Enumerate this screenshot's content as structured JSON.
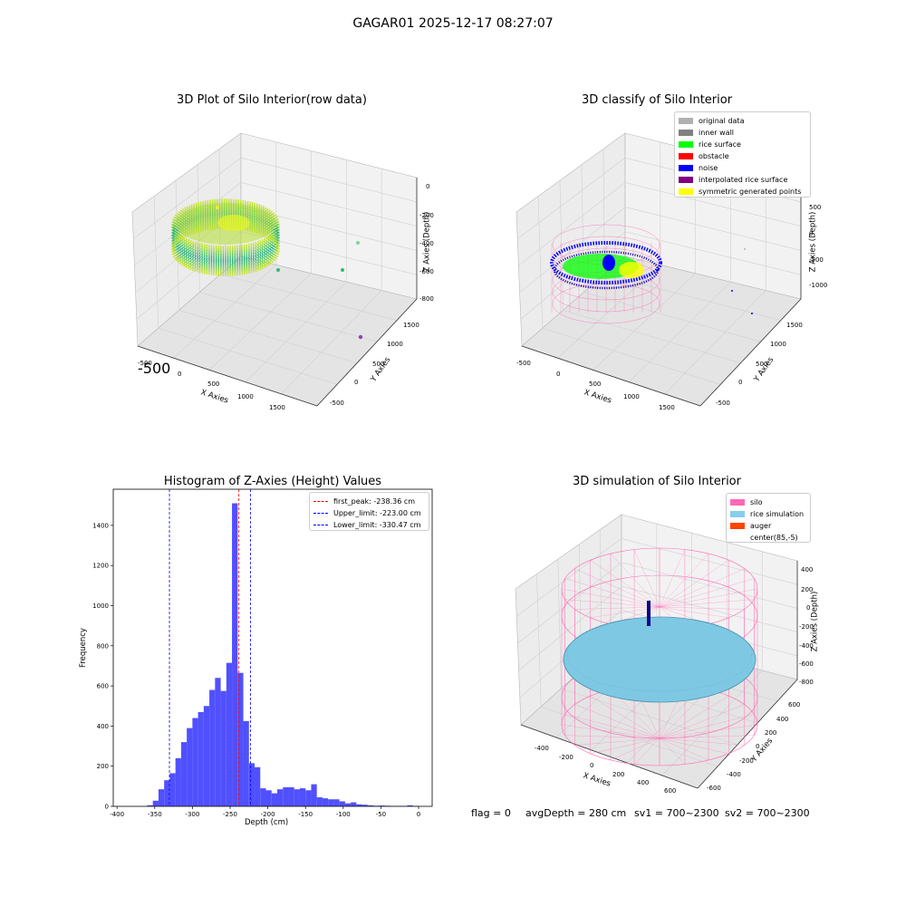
{
  "suptitle": "GAGAR01 2025-12-17 08:27:07",
  "colors": {
    "hist_bar": "#5050ff",
    "peak_line": "#ff0000",
    "limit_line": "#0000ff",
    "silo_wire": "#ff69b4",
    "rice_sim": "#7ec8e3",
    "noise": "#0000ff",
    "rice_surface": "#00ff00"
  },
  "chart_data": [
    {
      "id": "raw3d",
      "type": "scatter",
      "title": "3D Plot of Silo Interior(row data)",
      "xlabel": "X Axies",
      "ylabel": "Y Axies",
      "zlabel": "Z Axies (Depth)",
      "x_ticks": [
        "-500",
        "0",
        "500",
        "1000",
        "1500"
      ],
      "y_ticks": [
        "-500",
        "0",
        "500",
        "1000",
        "1500"
      ],
      "z_ticks": [
        "0",
        "-200",
        "-400",
        "-600",
        "-800"
      ]
    },
    {
      "id": "classify3d",
      "type": "scatter",
      "title": "3D classify of Silo Interior",
      "xlabel": "X Axies",
      "ylabel": "Y Axies",
      "zlabel": "Z Axies (Depth)",
      "x_ticks": [
        "-500",
        "0",
        "500",
        "1000",
        "1500"
      ],
      "y_ticks": [
        "-500",
        "0",
        "500",
        "1000",
        "1500"
      ],
      "z_ticks": [
        "500",
        "0",
        "-500",
        "-1000"
      ],
      "legend": [
        {
          "label": "original data",
          "color": "#b0b0b0"
        },
        {
          "label": "inner wall",
          "color": "#808080"
        },
        {
          "label": "rice surface",
          "color": "#00ff00"
        },
        {
          "label": "obstacle",
          "color": "#ff0000"
        },
        {
          "label": "noise",
          "color": "#0000ff"
        },
        {
          "label": "interpolated rice surface",
          "color": "#800080"
        },
        {
          "label": "symmetric generated points",
          "color": "#ffff00"
        }
      ]
    },
    {
      "id": "histogram",
      "type": "bar",
      "title": "Histogram of Z-Axies (Height) Values",
      "xlabel": "Depth (cm)",
      "ylabel": "Frequency",
      "xlim": [
        -405,
        18
      ],
      "ylim": [
        0,
        1580
      ],
      "x_ticks": [
        -400,
        -350,
        -300,
        -250,
        -200,
        -150,
        -100,
        -50,
        0
      ],
      "y_ticks": [
        0,
        200,
        400,
        600,
        800,
        1000,
        1200,
        1400
      ],
      "bin_start": -360,
      "bin_width": 7.5,
      "values": [
        5,
        28,
        85,
        130,
        165,
        240,
        320,
        390,
        440,
        470,
        500,
        580,
        640,
        575,
        715,
        1510,
        665,
        425,
        215,
        195,
        90,
        80,
        65,
        85,
        95,
        95,
        85,
        90,
        80,
        110,
        45,
        40,
        35,
        35,
        25,
        15,
        20,
        10,
        8,
        5,
        3,
        4,
        3,
        2,
        2,
        2,
        5,
        2
      ],
      "vlines": [
        {
          "label": "first_peak: -238.36 cm",
          "x": -238.36,
          "color": "#ff0000"
        },
        {
          "label": "Upper_limit: -223.00 cm",
          "x": -223.0,
          "color": "#0000ff"
        },
        {
          "label": "Lower_limit: -330.47 cm",
          "x": -330.47,
          "color": "#0000ff"
        }
      ]
    },
    {
      "id": "simulation3d",
      "type": "area",
      "title": "3D simulation of Silo Interior",
      "xlabel": "X Axies",
      "ylabel": "Y Axies",
      "zlabel": "Z Axies (Depth)",
      "x_ticks": [
        "-400",
        "-200",
        "0",
        "200",
        "400",
        "600"
      ],
      "y_ticks": [
        "-600",
        "-400",
        "-200",
        "0",
        "200",
        "400",
        "600"
      ],
      "z_ticks": [
        "400",
        "200",
        "0",
        "-200",
        "-400",
        "-600",
        "-800"
      ],
      "legend": [
        {
          "label": "silo",
          "color": "#ff69b4"
        },
        {
          "label": "rice simulation",
          "color": "#87ceeb"
        },
        {
          "label": "auger",
          "color": "#ff4500"
        },
        {
          "label": "center(85,-5)",
          "color": ""
        }
      ]
    }
  ],
  "status": {
    "flag": "flag = 0",
    "avg": "avgDepth = 280 cm",
    "sv1": "sv1 = 700~2300",
    "sv2": "sv2 = 700~2300"
  }
}
